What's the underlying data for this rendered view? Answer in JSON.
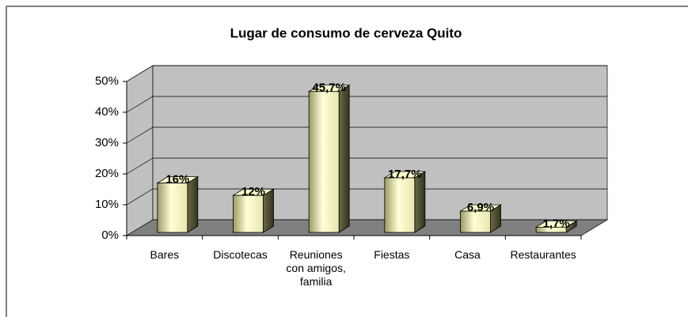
{
  "chart_data": {
    "type": "bar3d",
    "title": "Lugar de consumo de cerveza Quito",
    "categories": [
      "Bares",
      "Discotecas",
      "Reuniones con amigos, familia",
      "Fiestas",
      "Casa",
      "Restaurantes"
    ],
    "values": [
      16,
      12,
      45.7,
      17.7,
      6.9,
      1.7
    ],
    "value_labels": [
      "16%",
      "12%",
      "45,7%",
      "17,7%",
      "6,9%",
      "1,7%"
    ],
    "ylim": [
      0,
      50
    ],
    "yticks": [
      {
        "value": 0,
        "label": "0%"
      },
      {
        "value": 10,
        "label": "10%"
      },
      {
        "value": 20,
        "label": "20%"
      },
      {
        "value": 30,
        "label": "30%"
      },
      {
        "value": 40,
        "label": "40%"
      },
      {
        "value": 50,
        "label": "50%"
      }
    ],
    "grid": true,
    "color": "#ffffcc"
  }
}
